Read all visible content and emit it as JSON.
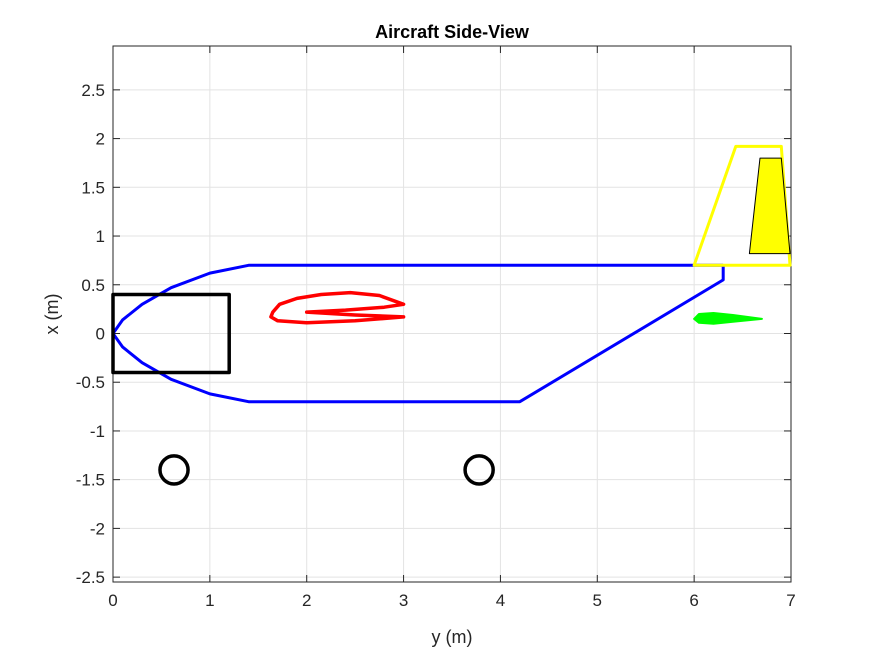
{
  "chart_data": {
    "type": "line",
    "title": "Aircraft Side-View",
    "xlabel": "y (m)",
    "ylabel": "x (m)",
    "xlim": [
      0,
      7
    ],
    "ylim": [
      -2.55,
      2.95
    ],
    "xticks": [
      0,
      1,
      2,
      3,
      4,
      5,
      6,
      7
    ],
    "yticks": [
      -2.5,
      -2,
      -1.5,
      -1,
      -0.5,
      0,
      0.5,
      1,
      1.5,
      2,
      2.5
    ],
    "xtick_labels": [
      "0",
      "1",
      "2",
      "3",
      "4",
      "5",
      "6",
      "7"
    ],
    "ytick_labels": [
      "-2.5",
      "-2",
      "-1.5",
      "-1",
      "-0.5",
      "0",
      "0.5",
      "1",
      "1.5",
      "2",
      "2.5"
    ],
    "grid": true,
    "series": [
      {
        "id": "fuselage",
        "color": "#0000ff",
        "width": 3,
        "closed": false,
        "points": [
          [
            6.3,
            0.7
          ],
          [
            1.4,
            0.7
          ],
          [
            1.0,
            0.62
          ],
          [
            0.6,
            0.47
          ],
          [
            0.3,
            0.3
          ],
          [
            0.1,
            0.14
          ],
          [
            0.0,
            0.0
          ],
          [
            0.1,
            -0.14
          ],
          [
            0.3,
            -0.3
          ],
          [
            0.6,
            -0.47
          ],
          [
            1.0,
            -0.62
          ],
          [
            1.4,
            -0.7
          ],
          [
            4.2,
            -0.7
          ],
          [
            6.3,
            0.55
          ],
          [
            6.3,
            0.7
          ]
        ]
      },
      {
        "id": "cockpit-box",
        "color": "#000000",
        "width": 3.5,
        "closed": true,
        "points": [
          [
            0,
            0.4
          ],
          [
            1.2,
            0.4
          ],
          [
            1.2,
            -0.4
          ],
          [
            0,
            -0.4
          ]
        ]
      },
      {
        "id": "wing-airfoil",
        "color": "#ff0000",
        "width": 3.5,
        "closed": true,
        "points": [
          [
            1.65,
            0.22
          ],
          [
            1.72,
            0.3
          ],
          [
            1.9,
            0.36
          ],
          [
            2.15,
            0.4
          ],
          [
            2.45,
            0.42
          ],
          [
            2.75,
            0.39
          ],
          [
            3.0,
            0.3
          ],
          [
            2.8,
            0.27
          ],
          [
            2.4,
            0.24
          ],
          [
            2.0,
            0.22
          ],
          [
            2.5,
            0.19
          ],
          [
            3.0,
            0.17
          ],
          [
            2.5,
            0.13
          ],
          [
            2.0,
            0.11
          ],
          [
            1.7,
            0.13
          ],
          [
            1.63,
            0.17
          ]
        ]
      },
      {
        "id": "tail-airfoil",
        "color": "#00ff00",
        "width": 2,
        "closed": true,
        "fill": "#00ff00",
        "points": [
          [
            6.0,
            0.15
          ],
          [
            6.05,
            0.2
          ],
          [
            6.2,
            0.21
          ],
          [
            6.4,
            0.19
          ],
          [
            6.7,
            0.15
          ],
          [
            6.4,
            0.12
          ],
          [
            6.2,
            0.1
          ],
          [
            6.05,
            0.11
          ]
        ]
      },
      {
        "id": "vertical-fin",
        "color": "#ffff00",
        "width": 3,
        "closed": true,
        "points": [
          [
            6.0,
            0.7
          ],
          [
            6.43,
            1.92
          ],
          [
            6.9,
            1.92
          ],
          [
            6.99,
            0.7
          ]
        ]
      },
      {
        "id": "rudder",
        "color": "#000000",
        "width": 1,
        "closed": true,
        "fill": "#ffff00",
        "points": [
          [
            6.68,
            1.8
          ],
          [
            6.9,
            1.8
          ],
          [
            6.99,
            0.82
          ],
          [
            6.57,
            0.82
          ]
        ]
      }
    ],
    "wheels": [
      {
        "x": 0.63,
        "y": -1.4,
        "r": 0.145,
        "color": "#000000"
      },
      {
        "x": 3.78,
        "y": -1.4,
        "r": 0.145,
        "color": "#000000"
      }
    ]
  }
}
